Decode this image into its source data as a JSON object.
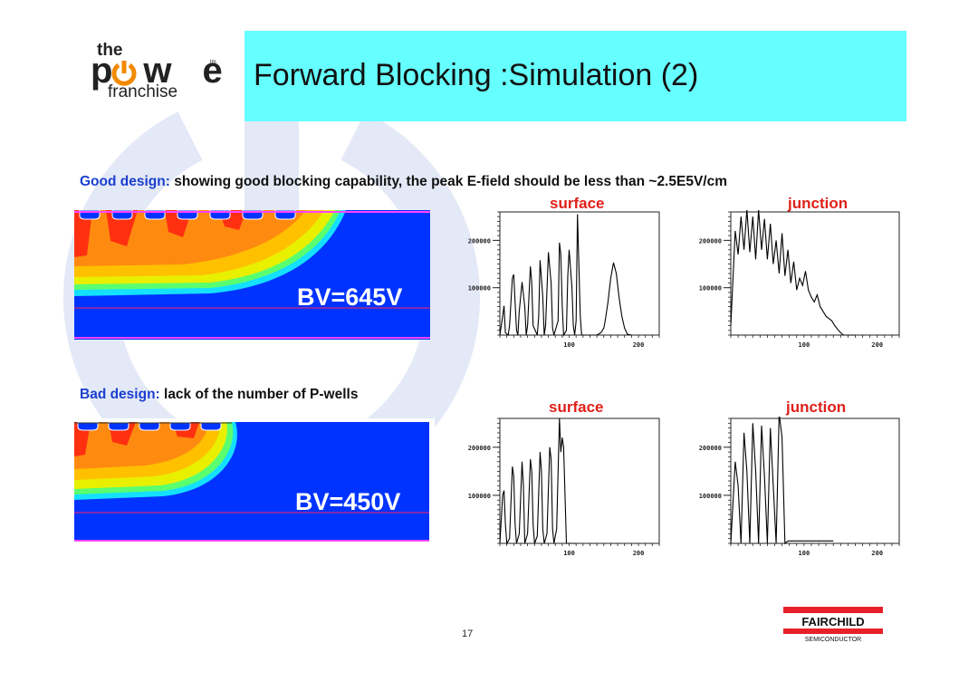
{
  "slide": {
    "title": "Forward Blocking :Simulation (2)",
    "page_number": "17"
  },
  "logo": {
    "the": "the",
    "power": "pwer",
    "tm": "tm",
    "franchise": "franchise"
  },
  "good": {
    "label": "Good design:",
    "text": " showing good blocking capability, the peak E-field should be less than ~2.5E5V/cm",
    "bv": "BV=645V",
    "surface_title": "surface",
    "junction_title": "junction"
  },
  "bad": {
    "label": "Bad design:",
    "text": " lack of the number of P-wells",
    "bv": "BV=450V",
    "surface_title": "surface",
    "junction_title": "junction"
  },
  "fairchild": {
    "name": "FAIRCHILD",
    "sub": "SEMICONDUCTOR"
  },
  "colors": {
    "title_bar": "#66ffff",
    "label_blue": "#1a3fcf",
    "plot_title_red": "#e0201a",
    "field_blue": "#0033ff",
    "fairchild_red": "#e8202a"
  },
  "chart_data": [
    {
      "type": "line",
      "title": "surface",
      "xlim": [
        0,
        230
      ],
      "ylim": [
        0,
        260000
      ],
      "xticks": [
        100,
        200
      ],
      "yticks": [
        100000,
        200000
      ],
      "x": [
        0,
        4,
        6,
        8,
        12,
        14,
        18,
        20,
        22,
        24,
        26,
        28,
        32,
        36,
        38,
        40,
        44,
        46,
        48,
        54,
        56,
        58,
        62,
        64,
        66,
        70,
        74,
        76,
        78,
        84,
        86,
        88,
        90,
        92,
        96,
        98,
        100,
        104,
        106,
        108,
        110,
        112,
        114,
        116,
        118,
        120,
        126,
        132,
        136,
        140,
        146,
        150,
        152,
        156,
        160,
        164,
        168,
        172,
        176,
        180,
        184,
        190
      ],
      "series": [
        {
          "values": [
            0,
            40000,
            62000,
            5000,
            0,
            20000,
            120000,
            128000,
            70000,
            10000,
            0,
            50000,
            112000,
            60000,
            0,
            20000,
            145000,
            110000,
            20000,
            0,
            40000,
            158000,
            80000,
            0,
            20000,
            175000,
            110000,
            15000,
            0,
            30000,
            195000,
            170000,
            60000,
            0,
            10000,
            125000,
            180000,
            100000,
            20000,
            0,
            30000,
            255000,
            150000,
            40000,
            0,
            0,
            0,
            0,
            0,
            0,
            5000,
            15000,
            30000,
            70000,
            120000,
            153000,
            130000,
            80000,
            40000,
            15000,
            2000,
            0
          ]
        }
      ]
    },
    {
      "type": "line",
      "title": "junction",
      "xlim": [
        0,
        230
      ],
      "ylim": [
        0,
        260000
      ],
      "xticks": [
        100,
        200
      ],
      "yticks": [
        100000,
        200000
      ],
      "x": [
        0,
        6,
        10,
        14,
        18,
        22,
        26,
        30,
        34,
        38,
        42,
        46,
        50,
        54,
        58,
        62,
        66,
        70,
        74,
        78,
        82,
        86,
        90,
        94,
        98,
        102,
        106,
        110,
        114,
        118,
        122,
        126,
        130,
        134,
        138,
        142,
        146,
        150,
        154,
        158,
        162,
        166,
        170
      ],
      "series": [
        {
          "values": [
            20000,
            220000,
            170000,
            250000,
            180000,
            265000,
            175000,
            250000,
            160000,
            265000,
            180000,
            245000,
            160000,
            235000,
            150000,
            200000,
            130000,
            215000,
            125000,
            180000,
            110000,
            155000,
            95000,
            120000,
            105000,
            135000,
            95000,
            80000,
            70000,
            85000,
            60000,
            50000,
            40000,
            35000,
            30000,
            20000,
            12000,
            5000,
            0,
            0,
            0,
            0,
            0
          ]
        }
      ]
    },
    {
      "type": "line",
      "title": "surface",
      "xlim": [
        0,
        230
      ],
      "ylim": [
        0,
        260000
      ],
      "xticks": [
        100,
        200
      ],
      "yticks": [
        100000,
        200000
      ],
      "x": [
        0,
        4,
        6,
        8,
        10,
        14,
        18,
        20,
        22,
        24,
        28,
        32,
        34,
        36,
        40,
        44,
        46,
        48,
        50,
        54,
        58,
        60,
        62,
        64,
        68,
        72,
        74,
        76,
        78,
        82,
        86,
        88,
        90,
        92,
        96,
        98,
        100,
        102,
        104,
        110
      ],
      "series": [
        {
          "values": [
            0,
            100000,
            110000,
            40000,
            0,
            10000,
            160000,
            140000,
            40000,
            0,
            20000,
            170000,
            120000,
            0,
            20000,
            175000,
            150000,
            40000,
            0,
            15000,
            190000,
            150000,
            30000,
            0,
            20000,
            200000,
            175000,
            30000,
            0,
            30000,
            260000,
            190000,
            220000,
            200000,
            0,
            0,
            0,
            0,
            0,
            0
          ]
        }
      ]
    },
    {
      "type": "line",
      "title": "junction",
      "xlim": [
        0,
        230
      ],
      "ylim": [
        0,
        260000
      ],
      "xticks": [
        100,
        200
      ],
      "yticks": [
        100000,
        200000
      ],
      "x": [
        0,
        6,
        10,
        14,
        18,
        22,
        26,
        30,
        34,
        38,
        42,
        46,
        50,
        54,
        58,
        62,
        66,
        70,
        74,
        78,
        82,
        86,
        90,
        94,
        98,
        102,
        110,
        120,
        130,
        140
      ],
      "series": [
        {
          "values": [
            0,
            170000,
            120000,
            0,
            230000,
            150000,
            0,
            250000,
            150000,
            0,
            245000,
            140000,
            0,
            240000,
            120000,
            0,
            270000,
            220000,
            0,
            5000,
            5000,
            5000,
            5000,
            5000,
            5000,
            5000,
            5000,
            5000,
            5000,
            5000
          ]
        }
      ]
    }
  ]
}
